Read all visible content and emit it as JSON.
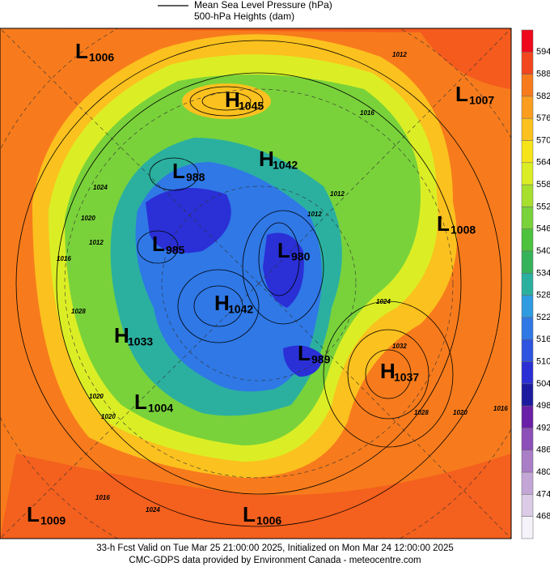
{
  "legend": {
    "lines": [
      "Mean Sea Level Pressure (hPa)",
      "500-hPa Heights (dam)"
    ]
  },
  "colorbar": {
    "ticks": [
      594,
      588,
      582,
      576,
      570,
      564,
      558,
      552,
      546,
      540,
      534,
      528,
      522,
      516,
      510,
      504,
      498,
      492,
      486,
      480,
      474,
      468
    ],
    "colors": [
      "#ee0a1c",
      "#f2461e",
      "#f77b1c",
      "#fa9d1e",
      "#fbc11e",
      "#f6e41a",
      "#dbee25",
      "#a7df2e",
      "#79d23a",
      "#4dc23d",
      "#36b35a",
      "#2bb0a0",
      "#2f9be0",
      "#2f78e6",
      "#2e53e0",
      "#2a2fd6",
      "#1c1ba0",
      "#6a1fa6",
      "#8d4fb8",
      "#a97ec6",
      "#c3a6d6",
      "#dccbe6",
      "#f6f2fa"
    ]
  },
  "centers": [
    {
      "label": "L",
      "value": 1006
    },
    {
      "label": "H",
      "value": 1045
    },
    {
      "label": "L",
      "value": 1007
    },
    {
      "label": "L",
      "value": 988
    },
    {
      "label": "H",
      "value": 1042
    },
    {
      "label": "L",
      "value": 1008
    },
    {
      "label": "L",
      "value": 985
    },
    {
      "label": "L",
      "value": 980
    },
    {
      "label": "H",
      "value": 1042
    },
    {
      "label": "H",
      "value": 1033
    },
    {
      "label": "L",
      "value": 989
    },
    {
      "label": "H",
      "value": 1037
    },
    {
      "label": "L",
      "value": 1004
    },
    {
      "label": "L",
      "value": 1009
    },
    {
      "label": "L",
      "value": 1006
    }
  ],
  "isobar_labels": [
    1012,
    1016,
    1012,
    1024,
    1028,
    1020,
    1012,
    1020,
    1032,
    1028,
    1020,
    1016,
    1024,
    1020,
    1016,
    1016,
    1012,
    1024
  ],
  "footer": {
    "lines": [
      "33-h Fcst Valid on Tue Mar 25 21:00:00 2025, Initialized on Mon Mar 24 12:00:00 2025",
      "CMC-GDPS data provided by Environment Canada - meteocentre.com"
    ]
  }
}
